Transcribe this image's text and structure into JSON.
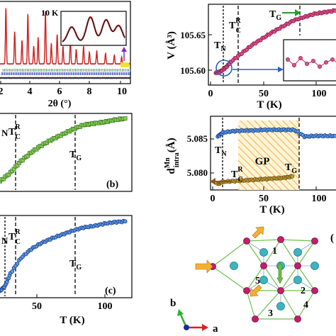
{
  "figure": {
    "panel_a": {
      "temperature_label": "10 K",
      "x_axis_label": "2θ (°)",
      "x_ticks": [
        "2",
        "4",
        "6",
        "8",
        "10"
      ]
    },
    "panel_b": {
      "label": "(b)",
      "markers": [
        "N",
        "T",
        "T"
      ],
      "marker_sub": [
        "",
        "C",
        "G"
      ],
      "marker_sup": [
        "",
        "R",
        ""
      ]
    },
    "panel_c": {
      "label": "(c)",
      "markers": [
        "N",
        "T",
        "T"
      ],
      "marker_sub": [
        "",
        "C",
        "G"
      ],
      "marker_sup": [
        "",
        "R",
        ""
      ],
      "x_axis_label": "T (K)",
      "x_ticks": [
        "50",
        "100"
      ]
    },
    "panel_v": {
      "y_axis_label": "V (Å³)",
      "y_ticks": [
        "105.65",
        "105.60"
      ],
      "x_ticks": [
        "0",
        "50",
        "100"
      ],
      "x_axis_label": "T (K)",
      "markers": [
        "T",
        "T",
        "T"
      ],
      "marker_sub": [
        "N",
        "C",
        "G"
      ],
      "marker_sup": [
        "",
        "R",
        ""
      ]
    },
    "panel_d": {
      "y_axis_label_main": "d",
      "y_axis_label_sup": "Mn",
      "y_axis_label_sub": "intra",
      "y_axis_unit": "(Å)",
      "y_ticks": [
        "5.085",
        "5.080"
      ],
      "x_ticks": [
        "0",
        "50",
        "100"
      ],
      "x_axis_label": "T (K)",
      "region_label": "GP",
      "markers": [
        "T",
        "T",
        "T"
      ],
      "marker_sub": [
        "N",
        "C",
        "G"
      ],
      "marker_sup": [
        "",
        "R",
        ""
      ]
    },
    "panel_struct": {
      "site_labels": [
        "1",
        "2",
        "3",
        "4",
        "5"
      ],
      "axis_b": "b",
      "axis_a": "a"
    },
    "colors": {
      "refinement_fit": "#d42020",
      "observed": "#1a1a1a",
      "green_series": "#5aa02c",
      "blue_series": "#2d6fd6",
      "magenta_series": "#c0306a",
      "olive_series": "#8a7a1e",
      "gp_hatch": "#f0b040",
      "mn_atom": "#c21e6e",
      "o_atom": "#3cb5c0"
    }
  },
  "chart_data": [
    {
      "type": "line",
      "title": "",
      "xlabel": "2θ (°)",
      "ylabel": "",
      "xlim": [
        1,
        10
      ],
      "annotation": "10 K"
    },
    {
      "type": "scatter",
      "title": "",
      "xlabel": "",
      "ylabel": "",
      "xlim": [
        0,
        125
      ],
      "markers_x": {
        "TN": 9,
        "TC_R": 22,
        "TG": 80
      },
      "series": [
        {
          "x": [
            0,
            10,
            20,
            30,
            40,
            50,
            60,
            70,
            80,
            90,
            100,
            110,
            120
          ],
          "y": [
            0.1,
            0.22,
            0.38,
            0.5,
            0.6,
            0.68,
            0.75,
            0.82,
            0.88,
            0.9,
            0.92,
            0.95,
            0.97
          ]
        }
      ]
    },
    {
      "type": "scatter",
      "title": "",
      "xlabel": "T (K)",
      "ylabel": "",
      "xlim": [
        0,
        125
      ],
      "markers_x": {
        "TN": 9,
        "TC_R": 22,
        "TG": 80
      },
      "series": [
        {
          "x": [
            0,
            5,
            10,
            20,
            30,
            40,
            50,
            60,
            70,
            80,
            90,
            100,
            110,
            120
          ],
          "y": [
            0.05,
            0.12,
            0.28,
            0.48,
            0.6,
            0.68,
            0.74,
            0.79,
            0.84,
            0.88,
            0.9,
            0.93,
            0.95,
            0.96
          ]
        }
      ]
    },
    {
      "type": "scatter",
      "title": "",
      "xlabel": "T (K)",
      "ylabel": "V (Å³)",
      "xlim": [
        0,
        125
      ],
      "ylim": [
        105.585,
        105.68
      ],
      "markers_x": {
        "TN": 10,
        "TC_R": 22,
        "TG": 80
      },
      "series": [
        {
          "x": [
            5,
            10,
            15,
            20,
            30,
            40,
            50,
            60,
            70,
            80,
            90,
            100,
            110,
            120
          ],
          "y": [
            105.598,
            105.6,
            105.605,
            105.612,
            105.622,
            105.632,
            105.64,
            105.648,
            105.655,
            105.662,
            105.666,
            105.67,
            105.672,
            105.674
          ]
        }
      ]
    },
    {
      "type": "scatter",
      "title": "",
      "xlabel": "T (K)",
      "ylabel": "d Mn intra (Å)",
      "xlim": [
        0,
        125
      ],
      "ylim": [
        5.0765,
        5.087
      ],
      "markers_x": {
        "TN": 10,
        "TC_R": 22,
        "TG": 80
      },
      "series": [
        {
          "x": [
            5,
            10,
            20,
            30,
            40,
            50,
            60,
            70,
            80,
            90,
            100,
            110,
            120
          ],
          "y": [
            5.0842,
            5.0848,
            5.085,
            5.0851,
            5.0851,
            5.0852,
            5.0852,
            5.0852,
            5.0852,
            5.0842,
            5.0843,
            5.0843,
            5.0843
          ]
        },
        {
          "x": [
            5,
            10,
            20,
            30,
            40,
            50,
            60,
            70,
            78
          ],
          "y": [
            5.0772,
            5.0775,
            5.0776,
            5.0777,
            5.0778,
            5.0779,
            5.078,
            5.0781,
            5.0783
          ]
        }
      ]
    }
  ]
}
